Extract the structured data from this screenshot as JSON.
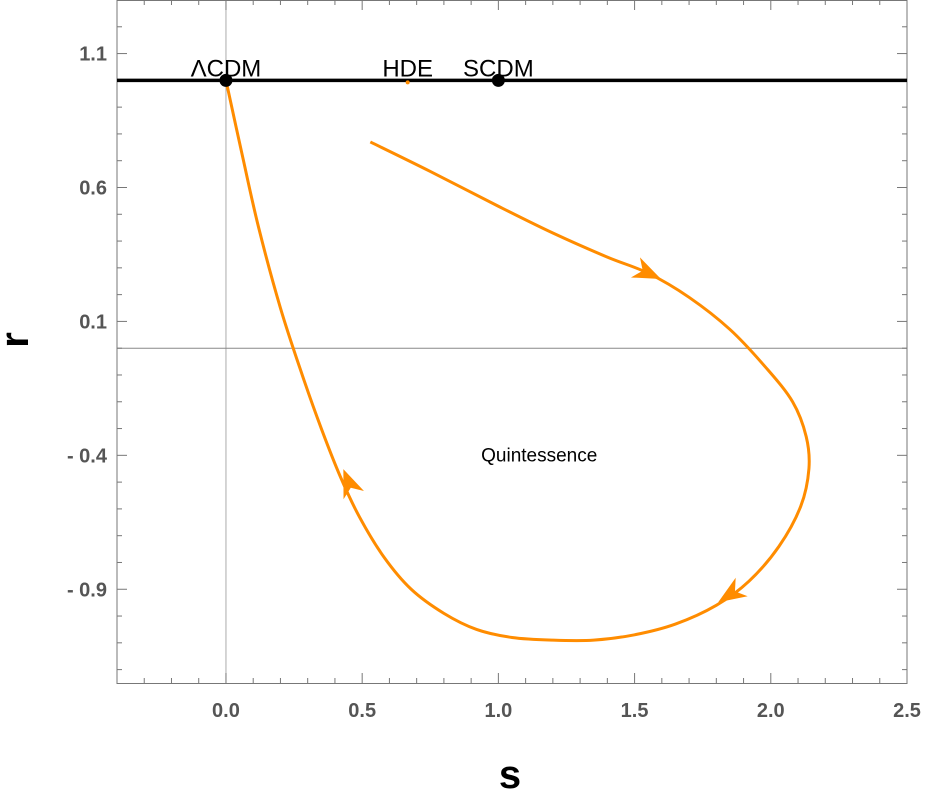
{
  "chart_data": {
    "type": "line",
    "title": "",
    "xlabel": "s",
    "ylabel": "r",
    "xlim": [
      -0.4,
      2.5
    ],
    "ylim": [
      -1.25,
      1.3
    ],
    "x_tick_labels": [
      "0.0",
      "0.5",
      "1.0",
      "1.5",
      "2.0",
      "2.5"
    ],
    "x_tick_values": [
      0.0,
      0.5,
      1.0,
      1.5,
      2.0,
      2.5
    ],
    "y_tick_labels": [
      "1.1",
      "0.6",
      "0.1",
      "- 0.4",
      "- 0.9"
    ],
    "y_tick_values": [
      1.1,
      0.6,
      0.1,
      -0.4,
      -0.9
    ],
    "reference_line": {
      "y": 1.0,
      "color": "#000000"
    },
    "fixed_points": [
      {
        "label": "ΛCDM",
        "s": 0.0,
        "r": 1.0
      },
      {
        "label": "HDE",
        "s": 0.667,
        "r": 1.0
      },
      {
        "label": "SCDM",
        "s": 1.0,
        "r": 1.0
      }
    ],
    "annotation": {
      "text": "Quintessence",
      "s": 1.15,
      "r": -0.4
    },
    "series": [
      {
        "color": "#ff8c00",
        "points": [
          [
            0.53,
            0.77
          ],
          [
            0.75,
            0.66
          ],
          [
            1.0,
            0.53
          ],
          [
            1.2,
            0.43
          ],
          [
            1.4,
            0.34
          ],
          [
            1.55,
            0.28
          ],
          [
            1.7,
            0.19
          ],
          [
            1.85,
            0.07
          ],
          [
            1.98,
            -0.07
          ],
          [
            2.08,
            -0.2
          ],
          [
            2.13,
            -0.33
          ],
          [
            2.14,
            -0.45
          ],
          [
            2.11,
            -0.59
          ],
          [
            2.03,
            -0.74
          ],
          [
            1.92,
            -0.87
          ],
          [
            1.8,
            -0.96
          ],
          [
            1.65,
            -1.03
          ],
          [
            1.5,
            -1.07
          ],
          [
            1.35,
            -1.09
          ],
          [
            1.2,
            -1.09
          ],
          [
            1.05,
            -1.08
          ],
          [
            0.92,
            -1.05
          ],
          [
            0.8,
            -0.99
          ],
          [
            0.68,
            -0.9
          ],
          [
            0.58,
            -0.78
          ],
          [
            0.49,
            -0.63
          ],
          [
            0.42,
            -0.48
          ],
          [
            0.35,
            -0.3
          ],
          [
            0.28,
            -0.1
          ],
          [
            0.2,
            0.15
          ],
          [
            0.12,
            0.45
          ],
          [
            0.06,
            0.72
          ],
          [
            0.0,
            1.0
          ]
        ],
        "arrows_at": [
          {
            "s": 1.55,
            "r": 0.28,
            "dir": [
              1,
              -0.45
            ]
          },
          {
            "s": 1.85,
            "r": -0.92,
            "dir": [
              -1,
              -0.65
            ]
          },
          {
            "s": 0.45,
            "r": -0.5,
            "dir": [
              -0.4,
              1
            ]
          }
        ]
      }
    ]
  }
}
